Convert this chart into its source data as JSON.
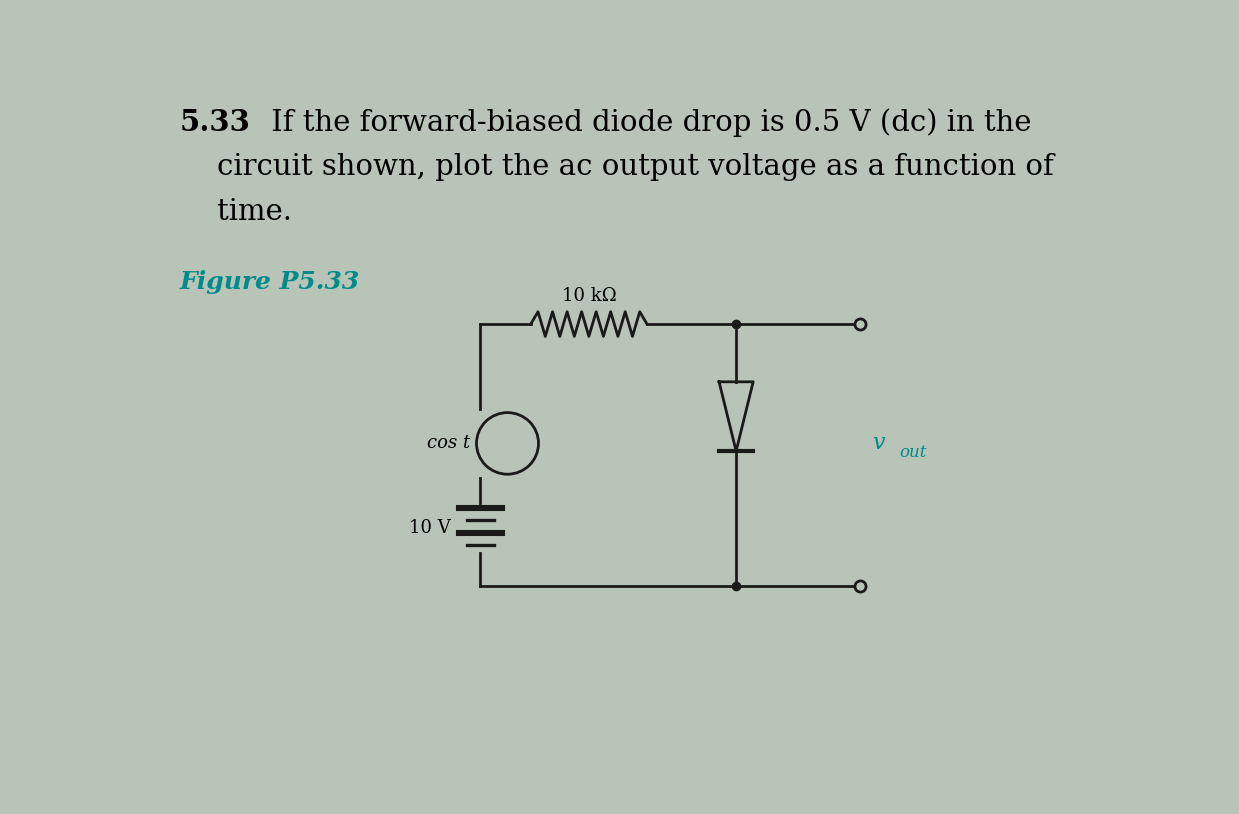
{
  "bg_color": "#b8c4b8",
  "title_bold": "5.33",
  "title_rest_line1": " If the forward-biased diode drop is 0.5 V (dc) in the",
  "title_line2": "    circuit shown, plot the ac output voltage as a function of",
  "title_line3": "    time.",
  "figure_label": "Figure P5.33",
  "resistor_label": "10 kΩ",
  "source_label": "cos t",
  "battery_label": "10 V",
  "circuit_color": "#1a1a1a",
  "teal_color": "#008B8B",
  "title_fontsize": 21,
  "fig_label_fontsize": 18,
  "circuit_lw": 2.0
}
